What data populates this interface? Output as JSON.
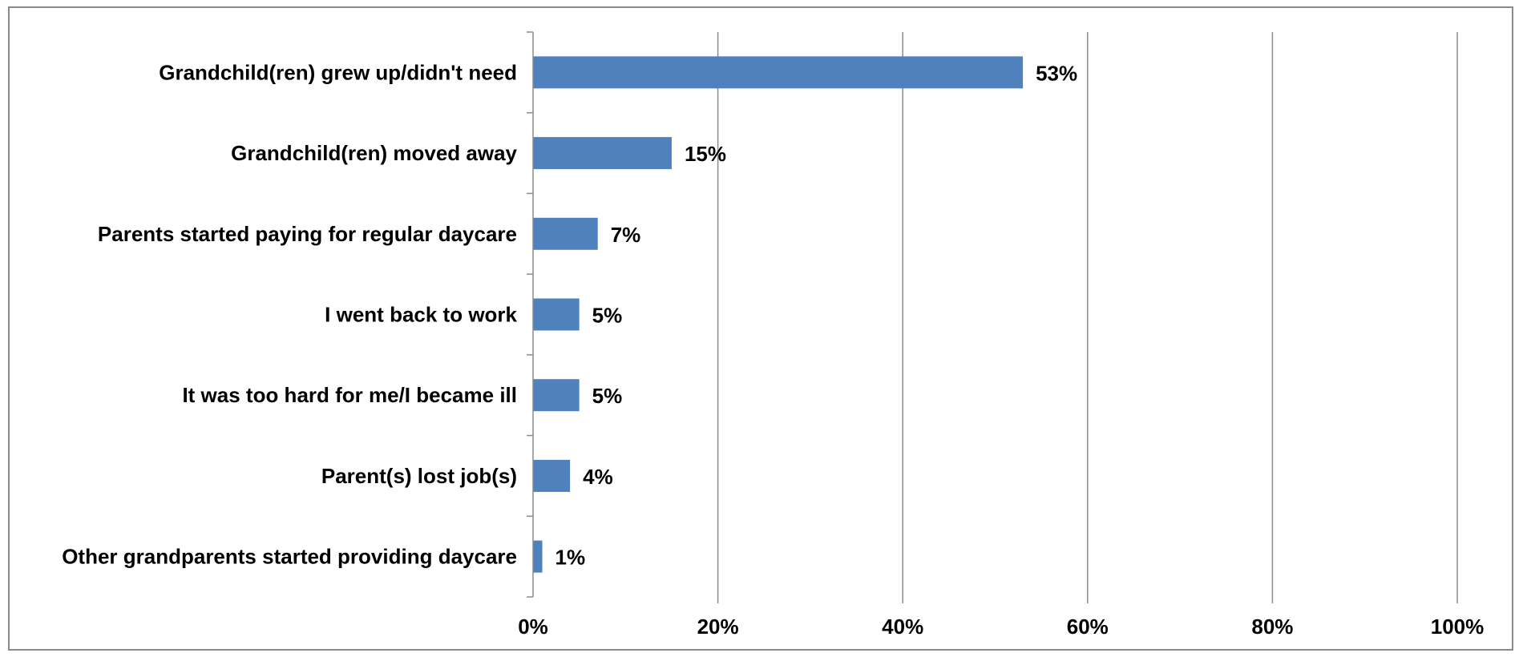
{
  "chart_data": {
    "type": "bar",
    "orientation": "horizontal",
    "categories": [
      "Grandchild(ren) grew up/didn't need",
      "Grandchild(ren) moved away",
      "Parents started paying for regular daycare",
      "I went back to work",
      "It was too hard for me/I became ill",
      "Parent(s) lost job(s)",
      "Other grandparents started providing daycare"
    ],
    "values": [
      53,
      15,
      7,
      5,
      5,
      4,
      1
    ],
    "value_labels": [
      "53%",
      "15%",
      "7%",
      "5%",
      "5%",
      "4%",
      "1%"
    ],
    "xlim": [
      0,
      100
    ],
    "ticks": [
      "0%",
      "20%",
      "40%",
      "60%",
      "80%",
      "100%"
    ],
    "tick_values": [
      0,
      20,
      40,
      60,
      80,
      100
    ],
    "title": "",
    "xlabel": "",
    "ylabel": "",
    "grid": true,
    "legend": "none",
    "bar_color": "#4f81bd",
    "grid_color": "#8c8c8c"
  }
}
